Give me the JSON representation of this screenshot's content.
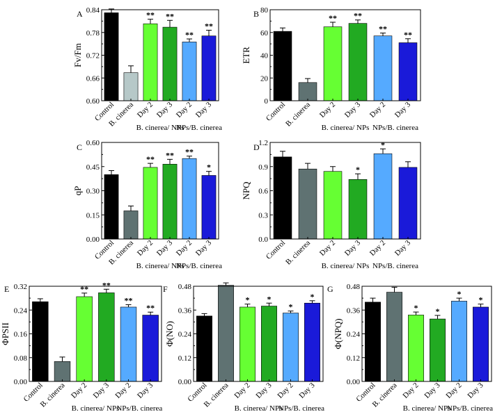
{
  "figure": {
    "description_free": true
  },
  "chart_data": [
    {
      "id": "A",
      "panel_label": "A",
      "type": "bar",
      "ylabel": "Fv/Fm",
      "ylim": [
        0.6,
        0.84
      ],
      "ticks": [
        0.6,
        0.66,
        0.72,
        0.78,
        0.84
      ],
      "tick_decimals": 2,
      "categories": [
        "Control",
        "B. cinerea",
        "Day 2",
        "Day 3",
        "Day 2",
        "Day 3"
      ],
      "groups": [
        "B. cinerea/ NPs",
        "NPs/B. cinerea"
      ],
      "values": [
        0.832,
        0.674,
        0.803,
        0.794,
        0.755,
        0.771
      ],
      "errors": [
        0.01,
        0.018,
        0.012,
        0.018,
        0.008,
        0.015
      ],
      "significance": [
        "",
        "",
        "**",
        "**",
        "**",
        "**"
      ],
      "colors": [
        "#000000",
        "#b6c8c8",
        "#66ff33",
        "#22aa22",
        "#55aaff",
        "#1a1ad9"
      ]
    },
    {
      "id": "B",
      "panel_label": "B",
      "type": "bar",
      "ylabel": "ETR",
      "ylim": [
        0,
        80
      ],
      "ticks": [
        0,
        20,
        40,
        60,
        80
      ],
      "tick_decimals": 0,
      "categories": [
        "Control",
        "B. cinerea",
        "Day 2",
        "Day 3",
        "Day 2",
        "Day 3"
      ],
      "groups": [
        "B. cinerea/ NPs",
        "NPs/B. cinerea"
      ],
      "values": [
        61,
        16,
        65,
        68,
        57,
        51
      ],
      "errors": [
        3,
        3.5,
        4,
        3,
        2.5,
        3.5
      ],
      "significance": [
        "",
        "",
        "**",
        "**",
        "**",
        "**"
      ],
      "colors": [
        "#000000",
        "#5f7272",
        "#66ff33",
        "#22aa22",
        "#55aaff",
        "#1a1ad9"
      ]
    },
    {
      "id": "C",
      "panel_label": "C",
      "type": "bar",
      "ylabel": "qP",
      "ylim": [
        0,
        0.6
      ],
      "ticks": [
        0.0,
        0.15,
        0.3,
        0.45,
        0.6
      ],
      "tick_decimals": 2,
      "categories": [
        "Control",
        "B. cinerea",
        "Day 2",
        "Day 3",
        "Day 2",
        "Day 3"
      ],
      "groups": [
        "B. cinerea/ NPs",
        "NPs/B. cinerea"
      ],
      "values": [
        0.4,
        0.175,
        0.445,
        0.465,
        0.5,
        0.395
      ],
      "errors": [
        0.025,
        0.03,
        0.025,
        0.03,
        0.015,
        0.025
      ],
      "significance": [
        "",
        "",
        "**",
        "**",
        "**",
        "*"
      ],
      "colors": [
        "#000000",
        "#5f7272",
        "#66ff33",
        "#22aa22",
        "#55aaff",
        "#1a1ad9"
      ]
    },
    {
      "id": "D",
      "panel_label": "D",
      "type": "bar",
      "ylabel": "NPQ",
      "ylim": [
        0,
        1.2
      ],
      "ticks": [
        0.0,
        0.3,
        0.6,
        0.9,
        1.2
      ],
      "tick_decimals": 1,
      "categories": [
        "Control",
        "B. cinerea",
        "Day 2",
        "Day 3",
        "Day 2",
        "Day 3"
      ],
      "groups": [
        "B. cinerea/ NPs",
        "NPs/B. cinerea"
      ],
      "values": [
        1.02,
        0.87,
        0.84,
        0.74,
        1.06,
        0.89
      ],
      "errors": [
        0.07,
        0.07,
        0.06,
        0.07,
        0.06,
        0.07
      ],
      "significance": [
        "",
        "",
        "",
        "*",
        "*",
        ""
      ],
      "colors": [
        "#000000",
        "#5f7272",
        "#66ff33",
        "#22aa22",
        "#55aaff",
        "#1a1ad9"
      ]
    },
    {
      "id": "E",
      "panel_label": "E",
      "type": "bar",
      "ylabel": "ΦPSII",
      "ylim": [
        0,
        0.32
      ],
      "ticks": [
        0.0,
        0.08,
        0.16,
        0.24,
        0.32
      ],
      "tick_decimals": 2,
      "categories": [
        "Control",
        "B. cinerea",
        "Day 2",
        "Day 3",
        "Day 2",
        "Day 3"
      ],
      "groups": [
        "B. cinerea/ NPs",
        "NPs/B. cinerea"
      ],
      "values": [
        0.268,
        0.067,
        0.285,
        0.298,
        0.25,
        0.223
      ],
      "errors": [
        0.01,
        0.015,
        0.012,
        0.012,
        0.008,
        0.01
      ],
      "significance": [
        "",
        "",
        "**",
        "**",
        "**",
        "**"
      ],
      "colors": [
        "#000000",
        "#5f7272",
        "#66ff33",
        "#22aa22",
        "#55aaff",
        "#1a1ad9"
      ]
    },
    {
      "id": "F",
      "panel_label": "F",
      "type": "bar",
      "ylabel": "Φ(NO)",
      "ylim": [
        0,
        0.48
      ],
      "ticks": [
        0.0,
        0.12,
        0.24,
        0.36,
        0.48
      ],
      "tick_decimals": 2,
      "categories": [
        "Control",
        "B. cinerea",
        "Day 2",
        "Day 3",
        "Day 2",
        "Day 3"
      ],
      "groups": [
        "B. cinerea/ NPs",
        "NPs/B. cinerea"
      ],
      "values": [
        0.33,
        0.485,
        0.375,
        0.38,
        0.345,
        0.395
      ],
      "errors": [
        0.012,
        0.012,
        0.015,
        0.015,
        0.01,
        0.012
      ],
      "significance": [
        "",
        "",
        "*",
        "*",
        "*",
        "*"
      ],
      "colors": [
        "#000000",
        "#5f7272",
        "#66ff33",
        "#22aa22",
        "#55aaff",
        "#1a1ad9"
      ]
    },
    {
      "id": "G",
      "panel_label": "G",
      "type": "bar",
      "ylabel": "Φ(NPQ)",
      "ylim": [
        0,
        0.48
      ],
      "ticks": [
        0.0,
        0.12,
        0.24,
        0.36,
        0.48
      ],
      "tick_decimals": 2,
      "categories": [
        "Control",
        "B. cinerea",
        "Day 2",
        "Day 3",
        "Day 2",
        "Day 3"
      ],
      "groups": [
        "B. cinerea/ NPs",
        "NPs/B. cinerea"
      ],
      "values": [
        0.4,
        0.45,
        0.335,
        0.315,
        0.405,
        0.375
      ],
      "errors": [
        0.02,
        0.025,
        0.015,
        0.018,
        0.015,
        0.015
      ],
      "significance": [
        "",
        "",
        "*",
        "*",
        "*",
        "*"
      ],
      "colors": [
        "#000000",
        "#5f7272",
        "#66ff33",
        "#22aa22",
        "#55aaff",
        "#1a1ad9"
      ]
    }
  ]
}
